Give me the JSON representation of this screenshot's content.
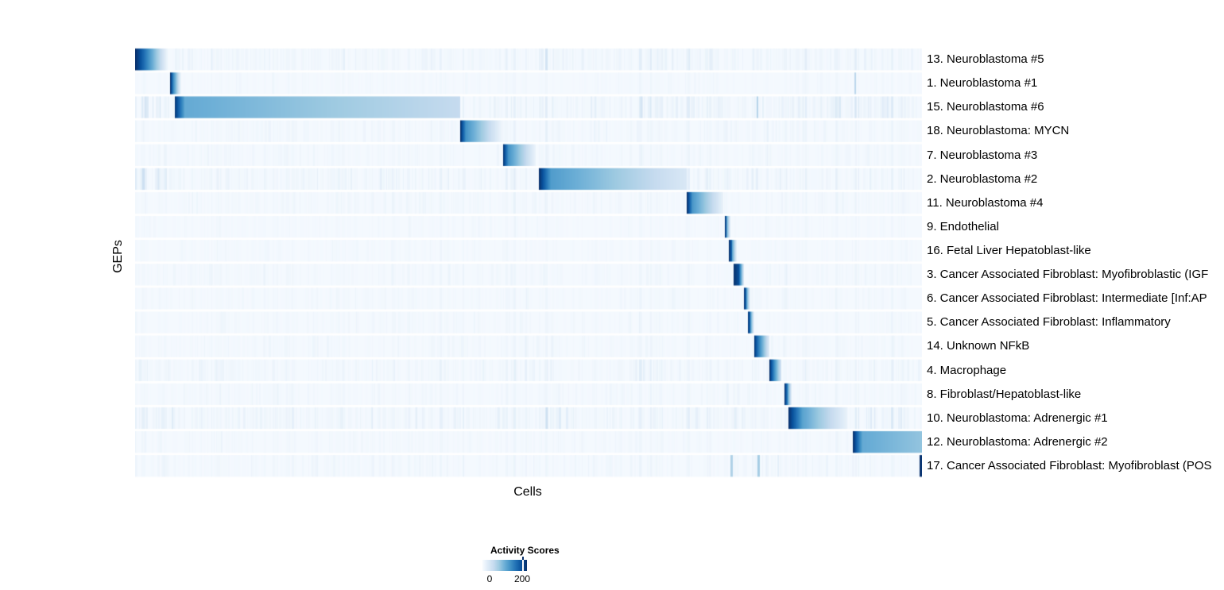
{
  "figure": {
    "xlabel": "Cells",
    "ylabel": "GEPs"
  },
  "chart_data": {
    "type": "heatmap",
    "title": "",
    "xlabel": "Cells",
    "ylabel": "GEPs",
    "n_rows": 18,
    "x_axis_note": "individual cells, sorted by assigned GEP; no per-column tick labels",
    "value_range": [
      0,
      200
    ],
    "segment_value_units": "normalized 0-1 of max activity score (1.0 = darkest blue ~200)",
    "colormap_stops": [
      "#F7FBFF",
      "#DEEBF7",
      "#C6DBEF",
      "#9ECAE1",
      "#6BAED6",
      "#4292C6",
      "#2171B5",
      "#08519C",
      "#08306B"
    ],
    "legend": {
      "title": "Activity Scores",
      "tick_labels": [
        "0",
        "200"
      ],
      "tick_positions": [
        0.16,
        0.91
      ]
    },
    "rows": [
      {
        "label": "13. Neuroblastoma #5",
        "segments": [
          [
            0.0,
            0.006,
            1.0,
            0.88
          ],
          [
            0.006,
            0.042,
            0.88,
            0.01
          ]
        ],
        "noise": 0.7,
        "bands": [
          [
            0.513,
            0.56,
            1.8
          ],
          [
            0.63,
            0.83,
            1.5
          ]
        ]
      },
      {
        "label": "1. Neuroblastoma #1",
        "segments": [
          [
            0.0444,
            0.0485,
            1.0,
            0.62
          ],
          [
            0.0485,
            0.058,
            0.62,
            0.03
          ],
          [
            0.9135,
            0.9158,
            0.28,
            0.28
          ]
        ],
        "noise": 0.3,
        "bands": []
      },
      {
        "label": "15. Neuroblastoma #6",
        "segments": [
          [
            0.0495,
            0.0626,
            1.0,
            0.54
          ],
          [
            0.0626,
            0.413,
            0.52,
            0.25
          ],
          [
            0.789,
            0.7912,
            0.3,
            0.3
          ]
        ],
        "noise": 0.85,
        "bands": [
          [
            0.0,
            0.05,
            2.0
          ],
          [
            0.513,
            0.7,
            1.4
          ],
          [
            0.7,
            0.747,
            1.8
          ],
          [
            0.83,
            1.0,
            1.6
          ]
        ]
      },
      {
        "label": "18. Neuroblastoma: MYCN",
        "segments": [
          [
            0.413,
            0.42,
            1.0,
            0.62
          ],
          [
            0.42,
            0.466,
            0.62,
            0.04
          ]
        ],
        "noise": 0.5,
        "bands": [
          [
            0.513,
            0.56,
            1.6
          ],
          [
            0.747,
            0.85,
            1.4
          ]
        ]
      },
      {
        "label": "7. Neuroblastoma #3",
        "segments": [
          [
            0.467,
            0.474,
            1.0,
            0.62
          ],
          [
            0.474,
            0.509,
            0.62,
            0.05
          ]
        ],
        "noise": 0.45,
        "bands": [
          [
            0.513,
            0.56,
            1.5
          ]
        ]
      },
      {
        "label": "2. Neuroblastoma #2",
        "segments": [
          [
            0.513,
            0.528,
            1.0,
            0.58
          ],
          [
            0.528,
            0.7,
            0.58,
            0.15
          ]
        ],
        "noise": 0.8,
        "bands": [
          [
            0.0,
            0.05,
            2.2
          ],
          [
            0.7,
            0.76,
            1.6
          ],
          [
            0.76,
            0.82,
            1.5
          ]
        ]
      },
      {
        "label": "11. Neuroblastoma #4",
        "segments": [
          [
            0.701,
            0.708,
            1.0,
            0.6
          ],
          [
            0.708,
            0.747,
            0.6,
            0.07
          ]
        ],
        "noise": 0.45,
        "bands": [
          [
            0.513,
            0.56,
            1.4
          ]
        ]
      },
      {
        "label": "9. Endothelial",
        "segments": [
          [
            0.7485,
            0.7512,
            1.0,
            0.85
          ],
          [
            0.7512,
            0.756,
            0.55,
            0.08
          ]
        ],
        "noise": 0.28,
        "bands": []
      },
      {
        "label": "16. Fetal Liver Hepatoblast-like",
        "segments": [
          [
            0.7545,
            0.7578,
            1.0,
            0.78
          ],
          [
            0.7578,
            0.764,
            0.6,
            0.08
          ]
        ],
        "noise": 0.3,
        "bands": [
          [
            0.818,
            0.832,
            2.0
          ]
        ]
      },
      {
        "label": "3. Cancer Associated Fibroblast: Myofibroblastic (IGF",
        "segments": [
          [
            0.76,
            0.7668,
            1.0,
            0.88
          ],
          [
            0.7668,
            0.773,
            0.85,
            0.15
          ]
        ],
        "noise": 0.45,
        "bands": [
          [
            0.818,
            0.832,
            2.0
          ]
        ]
      },
      {
        "label": "6. Cancer Associated Fibroblast: Intermediate [Inf:AP",
        "segments": [
          [
            0.7732,
            0.7763,
            1.0,
            0.78
          ],
          [
            0.7763,
            0.781,
            0.6,
            0.08
          ]
        ],
        "noise": 0.4,
        "bands": [
          [
            0.818,
            0.832,
            1.6
          ]
        ]
      },
      {
        "label": "5. Cancer Associated Fibroblast: Inflammatory",
        "segments": [
          [
            0.778,
            0.7815,
            1.0,
            0.78
          ],
          [
            0.7815,
            0.786,
            0.6,
            0.08
          ]
        ],
        "noise": 0.42,
        "bands": []
      },
      {
        "label": "14. Unknown NFkB",
        "segments": [
          [
            0.786,
            0.792,
            1.0,
            0.7
          ],
          [
            0.792,
            0.8055,
            0.7,
            0.12
          ]
        ],
        "noise": 0.45,
        "bands": [
          [
            0.513,
            0.56,
            1.3
          ]
        ]
      },
      {
        "label": "4. Macrophage",
        "segments": [
          [
            0.806,
            0.8125,
            1.0,
            0.6
          ],
          [
            0.8125,
            0.8205,
            0.6,
            0.18
          ]
        ],
        "noise": 0.6,
        "bands": [
          [
            0.0,
            0.05,
            1.3
          ],
          [
            0.63,
            0.68,
            1.5
          ]
        ]
      },
      {
        "label": "8. Fibroblast/Hepatoblast-like",
        "segments": [
          [
            0.825,
            0.8285,
            1.0,
            0.72
          ],
          [
            0.8285,
            0.834,
            0.6,
            0.08
          ]
        ],
        "noise": 0.4,
        "bands": [
          [
            0.747,
            0.8,
            1.8
          ]
        ]
      },
      {
        "label": "10. Neuroblastoma: Adrenergic #1",
        "segments": [
          [
            0.83,
            0.848,
            1.0,
            0.55
          ],
          [
            0.848,
            0.905,
            0.55,
            0.07
          ]
        ],
        "noise": 0.9,
        "bands": [
          [
            0.0,
            0.05,
            1.8
          ],
          [
            0.513,
            0.56,
            1.8
          ],
          [
            0.7,
            0.78,
            1.4
          ],
          [
            0.912,
            1.0,
            1.4
          ]
        ]
      },
      {
        "label": "12. Neuroblastoma: Adrenergic #2",
        "segments": [
          [
            0.912,
            0.924,
            1.0,
            0.52
          ],
          [
            0.924,
            1.0,
            0.52,
            0.4
          ]
        ],
        "noise": 0.42,
        "bands": [
          [
            0.747,
            0.8,
            1.4
          ]
        ]
      },
      {
        "label": "17. Cancer Associated Fibroblast: Myofibroblast (POS",
        "segments": [
          [
            0.9968,
            1.0,
            1.0,
            0.97
          ],
          [
            0.7565,
            0.759,
            0.32,
            0.32
          ],
          [
            0.7905,
            0.793,
            0.35,
            0.35
          ]
        ],
        "noise": 0.5,
        "bands": [
          [
            0.747,
            0.82,
            1.7
          ]
        ]
      }
    ]
  }
}
